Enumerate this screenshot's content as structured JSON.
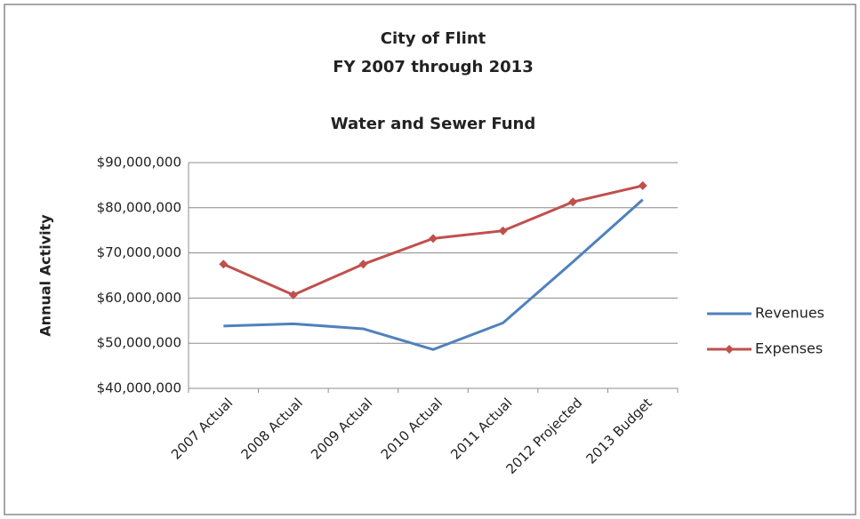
{
  "chart_data": {
    "type": "line",
    "title": [
      "City of Flint",
      "FY 2007 through 2013",
      "Water and Sewer Fund"
    ],
    "y_label": "Annual Activity",
    "categories": [
      "2007 Actual",
      "2008 Actual",
      "2009 Actual",
      "2010 Actual",
      "2011 Actual",
      "2012 Projected",
      "2013 Budget"
    ],
    "series": [
      {
        "name": "Revenues",
        "color": "#4f81bd",
        "marker": "none",
        "values": [
          53800000,
          54300000,
          53200000,
          48600000,
          54500000,
          68000000,
          81800000
        ]
      },
      {
        "name": "Expenses",
        "color": "#c0504d",
        "marker": "diamond",
        "values": [
          67500000,
          60700000,
          67500000,
          73200000,
          74900000,
          81300000,
          84900000
        ]
      }
    ],
    "ylim": [
      40000000,
      90000000
    ],
    "yticks": [
      {
        "value": 40000000,
        "label": "$40,000,000"
      },
      {
        "value": 50000000,
        "label": "$50,000,000"
      },
      {
        "value": 60000000,
        "label": "$60,000,000"
      },
      {
        "value": 70000000,
        "label": "$70,000,000"
      },
      {
        "value": 80000000,
        "label": "$80,000,000"
      },
      {
        "value": 90000000,
        "label": "$90,000,000"
      }
    ],
    "grid": true,
    "legend": "right"
  }
}
